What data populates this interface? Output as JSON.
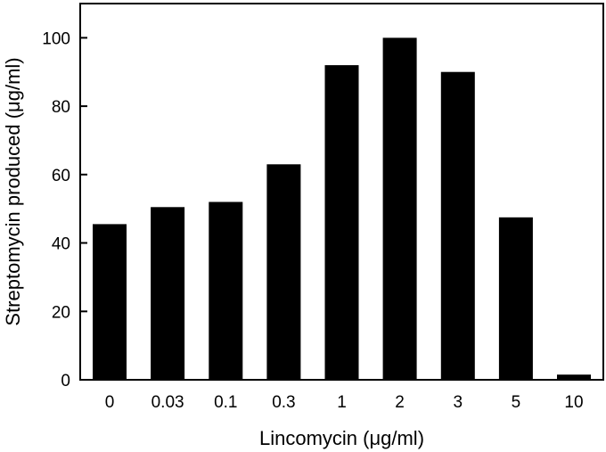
{
  "chart_data": {
    "type": "bar",
    "title": "",
    "xlabel": "Lincomycin (μg/ml)",
    "ylabel": "Streptomycin produced (μg/ml)",
    "categories": [
      "0",
      "0.03",
      "0.1",
      "0.3",
      "1",
      "2",
      "3",
      "5",
      "10"
    ],
    "values": [
      45.5,
      50.5,
      52,
      63,
      92,
      100,
      90,
      47.5,
      1.5
    ],
    "ylim": [
      0,
      110
    ],
    "yticks": [
      "0",
      "20",
      "40",
      "60",
      "80",
      "100"
    ],
    "grid": false,
    "legend": "none",
    "bar_color": "#000000"
  }
}
